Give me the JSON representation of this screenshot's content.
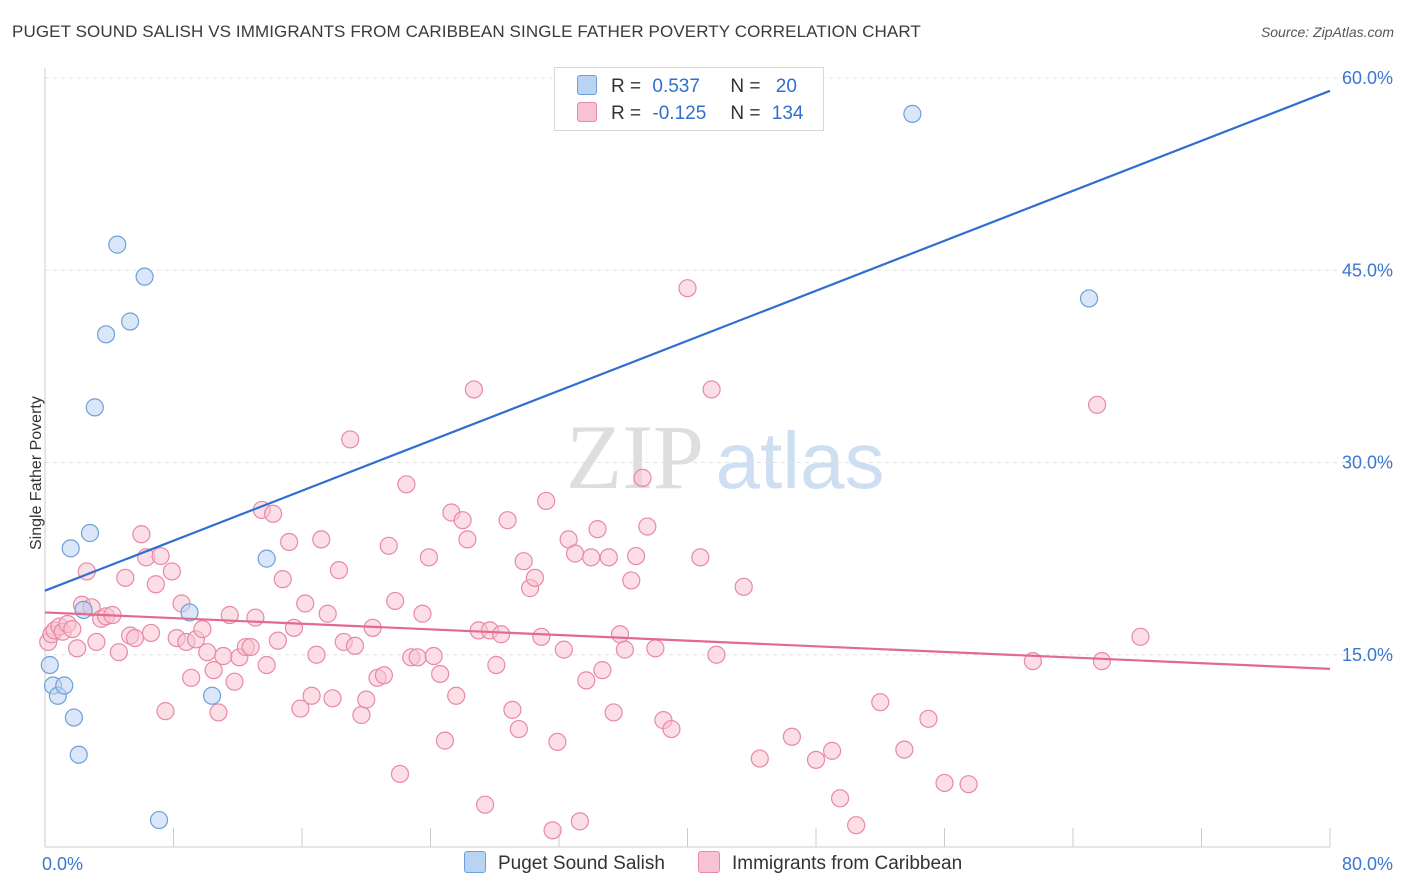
{
  "title": "PUGET SOUND SALISH VS IMMIGRANTS FROM CARIBBEAN SINGLE FATHER POVERTY CORRELATION CHART",
  "source": "Source: ZipAtlas.com",
  "watermark": {
    "zip": "ZIP",
    "atlas": "atlas"
  },
  "colors": {
    "blue_fill": "#b9d3f3",
    "blue_stroke": "#6f9fd8",
    "blue_line": "#2f6fd0",
    "pink_fill": "#f7c2d2",
    "pink_stroke": "#e889a7",
    "pink_line": "#e2698f",
    "axis_text": "#3a78d0"
  },
  "legend": {
    "rows": [
      {
        "r_label": "R =",
        "r_value": "0.537",
        "n_label": "N =",
        "n_value": "20"
      },
      {
        "r_label": "R =",
        "r_value": "-0.125",
        "n_label": "N =",
        "n_value": "134"
      }
    ]
  },
  "bottom_legend": [
    "Puget Sound Salish",
    "Immigrants from Caribbean"
  ],
  "chart_data": {
    "type": "scatter",
    "title": "PUGET SOUND SALISH VS IMMIGRANTS FROM CARIBBEAN SINGLE FATHER POVERTY CORRELATION CHART",
    "xlabel": "",
    "ylabel": "Single Father Poverty",
    "xlim": [
      0,
      80
    ],
    "ylim": [
      0,
      60
    ],
    "x_tick_labels": [
      "0.0%",
      "80.0%"
    ],
    "y_ticks": [
      15,
      30,
      45,
      60
    ],
    "y_tick_labels": [
      "15.0%",
      "30.0%",
      "45.0%",
      "60.0%"
    ],
    "grid": true,
    "legend_placement": "top-center",
    "series": [
      {
        "name": "Puget Sound Salish",
        "r": 0.537,
        "n": 20,
        "trend": {
          "x": [
            0,
            80
          ],
          "y": [
            20.0,
            59.0
          ]
        },
        "points": [
          [
            0.3,
            14.2
          ],
          [
            0.5,
            12.6
          ],
          [
            0.8,
            11.8
          ],
          [
            1.2,
            12.6
          ],
          [
            1.6,
            23.3
          ],
          [
            1.8,
            10.1
          ],
          [
            2.1,
            7.2
          ],
          [
            2.4,
            18.5
          ],
          [
            2.8,
            24.5
          ],
          [
            3.1,
            34.3
          ],
          [
            3.8,
            40.0
          ],
          [
            4.5,
            47.0
          ],
          [
            5.3,
            41.0
          ],
          [
            6.2,
            44.5
          ],
          [
            7.1,
            2.1
          ],
          [
            9.0,
            18.3
          ],
          [
            10.4,
            11.8
          ],
          [
            13.8,
            22.5
          ],
          [
            54.0,
            57.2
          ],
          [
            65.0,
            42.8
          ]
        ]
      },
      {
        "name": "Immigrants from Caribbean",
        "r": -0.125,
        "n": 134,
        "trend": {
          "x": [
            0,
            80
          ],
          "y": [
            18.3,
            13.9
          ]
        },
        "points": [
          [
            0.2,
            16.0
          ],
          [
            0.4,
            16.6
          ],
          [
            0.6,
            16.9
          ],
          [
            0.9,
            17.2
          ],
          [
            1.1,
            16.8
          ],
          [
            1.4,
            17.4
          ],
          [
            1.7,
            17.0
          ],
          [
            2.0,
            15.5
          ],
          [
            2.3,
            18.9
          ],
          [
            2.6,
            21.5
          ],
          [
            2.9,
            18.7
          ],
          [
            3.2,
            16.0
          ],
          [
            3.5,
            17.8
          ],
          [
            3.8,
            18.0
          ],
          [
            4.2,
            18.1
          ],
          [
            4.6,
            15.2
          ],
          [
            5.0,
            21.0
          ],
          [
            5.3,
            16.5
          ],
          [
            5.6,
            16.3
          ],
          [
            6.0,
            24.4
          ],
          [
            6.3,
            22.6
          ],
          [
            6.6,
            16.7
          ],
          [
            6.9,
            20.5
          ],
          [
            7.2,
            22.7
          ],
          [
            7.5,
            10.6
          ],
          [
            7.9,
            21.5
          ],
          [
            8.2,
            16.3
          ],
          [
            8.5,
            19.0
          ],
          [
            8.8,
            16.0
          ],
          [
            9.1,
            13.2
          ],
          [
            9.4,
            16.2
          ],
          [
            9.8,
            17.0
          ],
          [
            10.1,
            15.2
          ],
          [
            10.5,
            13.8
          ],
          [
            10.8,
            10.5
          ],
          [
            11.1,
            14.9
          ],
          [
            11.5,
            18.1
          ],
          [
            11.8,
            12.9
          ],
          [
            12.1,
            14.8
          ],
          [
            12.5,
            15.6
          ],
          [
            12.8,
            15.6
          ],
          [
            13.1,
            17.9
          ],
          [
            13.5,
            26.3
          ],
          [
            13.8,
            14.2
          ],
          [
            14.2,
            26.0
          ],
          [
            14.5,
            16.1
          ],
          [
            14.8,
            20.9
          ],
          [
            15.2,
            23.8
          ],
          [
            15.5,
            17.1
          ],
          [
            15.9,
            10.8
          ],
          [
            16.2,
            19.0
          ],
          [
            16.6,
            11.8
          ],
          [
            16.9,
            15.0
          ],
          [
            17.2,
            24.0
          ],
          [
            17.6,
            18.2
          ],
          [
            17.9,
            11.6
          ],
          [
            18.3,
            21.6
          ],
          [
            18.6,
            16.0
          ],
          [
            19.0,
            31.8
          ],
          [
            19.3,
            15.7
          ],
          [
            19.7,
            10.3
          ],
          [
            20.0,
            11.5
          ],
          [
            20.4,
            17.1
          ],
          [
            20.7,
            13.2
          ],
          [
            21.1,
            13.4
          ],
          [
            21.4,
            23.5
          ],
          [
            21.8,
            19.2
          ],
          [
            22.1,
            5.7
          ],
          [
            22.5,
            28.3
          ],
          [
            22.8,
            14.8
          ],
          [
            23.2,
            14.8
          ],
          [
            23.5,
            18.2
          ],
          [
            23.9,
            22.6
          ],
          [
            24.2,
            14.9
          ],
          [
            24.6,
            13.5
          ],
          [
            24.9,
            8.3
          ],
          [
            25.3,
            26.1
          ],
          [
            25.6,
            11.8
          ],
          [
            26.0,
            25.5
          ],
          [
            26.3,
            24.0
          ],
          [
            26.7,
            35.7
          ],
          [
            27.0,
            16.9
          ],
          [
            27.4,
            3.3
          ],
          [
            27.7,
            16.9
          ],
          [
            28.1,
            14.2
          ],
          [
            28.4,
            16.6
          ],
          [
            28.8,
            25.5
          ],
          [
            29.1,
            10.7
          ],
          [
            29.5,
            9.2
          ],
          [
            29.8,
            22.3
          ],
          [
            30.2,
            20.2
          ],
          [
            30.5,
            21.0
          ],
          [
            30.9,
            16.4
          ],
          [
            31.2,
            27.0
          ],
          [
            31.6,
            1.3
          ],
          [
            31.9,
            8.2
          ],
          [
            32.3,
            15.4
          ],
          [
            32.6,
            24.0
          ],
          [
            33.0,
            22.9
          ],
          [
            33.3,
            2.0
          ],
          [
            33.7,
            13.0
          ],
          [
            34.0,
            22.6
          ],
          [
            34.4,
            24.8
          ],
          [
            34.7,
            13.8
          ],
          [
            35.1,
            22.6
          ],
          [
            35.4,
            10.5
          ],
          [
            35.8,
            16.6
          ],
          [
            36.1,
            15.4
          ],
          [
            36.5,
            20.8
          ],
          [
            36.8,
            22.7
          ],
          [
            37.2,
            28.8
          ],
          [
            37.5,
            25.0
          ],
          [
            38.0,
            15.5
          ],
          [
            38.5,
            9.9
          ],
          [
            39.0,
            9.2
          ],
          [
            40.0,
            43.6
          ],
          [
            40.8,
            22.6
          ],
          [
            41.5,
            35.7
          ],
          [
            41.8,
            15.0
          ],
          [
            43.5,
            20.3
          ],
          [
            44.5,
            6.9
          ],
          [
            46.5,
            8.6
          ],
          [
            48.0,
            6.8
          ],
          [
            49.0,
            7.5
          ],
          [
            49.5,
            3.8
          ],
          [
            50.5,
            1.7
          ],
          [
            52.0,
            11.3
          ],
          [
            53.5,
            7.6
          ],
          [
            55.0,
            10.0
          ],
          [
            56.0,
            5.0
          ],
          [
            57.5,
            4.9
          ],
          [
            61.5,
            14.5
          ],
          [
            65.5,
            34.5
          ],
          [
            65.8,
            14.5
          ],
          [
            68.2,
            16.4
          ]
        ]
      }
    ]
  }
}
